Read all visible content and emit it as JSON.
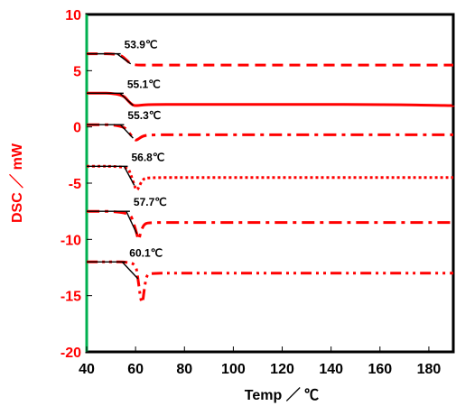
{
  "chart_data": {
    "type": "line",
    "title": "",
    "xlabel": "Temp ／ ℃",
    "ylabel": "DSC ／ mW",
    "xlim": [
      40,
      190
    ],
    "ylim": [
      -20,
      10
    ],
    "xticks": [
      40,
      60,
      80,
      100,
      120,
      140,
      160,
      180
    ],
    "yticks": [
      10,
      5,
      0,
      -5,
      -10,
      -15,
      -20
    ],
    "grid": false,
    "colors": {
      "curve": "#ff0000",
      "frame": "#000000",
      "y_axis": "#00b050",
      "tangent": "#000000",
      "tick_y": "#ff0000"
    },
    "series": [
      {
        "style": "dash",
        "peak_label": "53.9℃",
        "x": [
          40,
          46,
          50,
          53.9,
          56,
          58,
          60,
          65,
          80,
          120,
          160,
          190
        ],
        "y": [
          6.5,
          6.5,
          6.5,
          6.4,
          6.0,
          5.6,
          5.5,
          5.5,
          5.5,
          5.5,
          5.5,
          5.5
        ]
      },
      {
        "style": "solid",
        "peak_label": "55.1℃",
        "x": [
          40,
          46,
          50,
          55.1,
          57,
          59,
          61,
          65,
          80,
          120,
          160,
          190
        ],
        "y": [
          3.0,
          3.0,
          3.0,
          2.8,
          2.3,
          1.9,
          1.9,
          2.0,
          2.0,
          2.0,
          2.0,
          1.9
        ]
      },
      {
        "style": "dashdot",
        "peak_label": "55.3℃",
        "x": [
          40,
          46,
          50,
          55.3,
          57,
          59,
          60,
          61,
          63,
          66,
          80,
          120,
          160,
          190
        ],
        "y": [
          0.2,
          0.2,
          0.2,
          0.0,
          -0.4,
          -1.0,
          -1.2,
          -1.1,
          -0.8,
          -0.7,
          -0.7,
          -0.7,
          -0.7,
          -0.7
        ]
      },
      {
        "style": "dot",
        "peak_label": "56.8℃",
        "x": [
          40,
          46,
          50,
          56.8,
          58,
          59.5,
          60.5,
          61.5,
          63,
          66,
          80,
          120,
          160,
          190
        ],
        "y": [
          -3.5,
          -3.5,
          -3.5,
          -3.6,
          -4.2,
          -5.2,
          -5.7,
          -5.3,
          -4.6,
          -4.5,
          -4.5,
          -4.5,
          -4.5,
          -4.5
        ]
      },
      {
        "style": "dashdot",
        "peak_label": "57.7℃",
        "x": [
          40,
          46,
          50,
          57.7,
          59,
          60.5,
          61.3,
          62,
          63.5,
          66,
          80,
          120,
          160,
          190
        ],
        "y": [
          -7.5,
          -7.5,
          -7.5,
          -7.7,
          -8.4,
          -9.5,
          -10.2,
          -9.4,
          -8.6,
          -8.5,
          -8.5,
          -8.5,
          -8.5,
          -8.5
        ]
      },
      {
        "style": "dashdotdot",
        "peak_label": "60.1℃",
        "x": [
          40,
          46,
          50,
          56,
          60.1,
          61,
          62,
          62.8,
          63.5,
          64.5,
          66,
          80,
          120,
          160,
          190
        ],
        "y": [
          -12.0,
          -12.0,
          -12.0,
          -12.0,
          -12.2,
          -13.5,
          -15.2,
          -15.8,
          -14.5,
          -13.2,
          -13.0,
          -13.0,
          -13.0,
          -13.0,
          -13.0
        ]
      }
    ]
  }
}
